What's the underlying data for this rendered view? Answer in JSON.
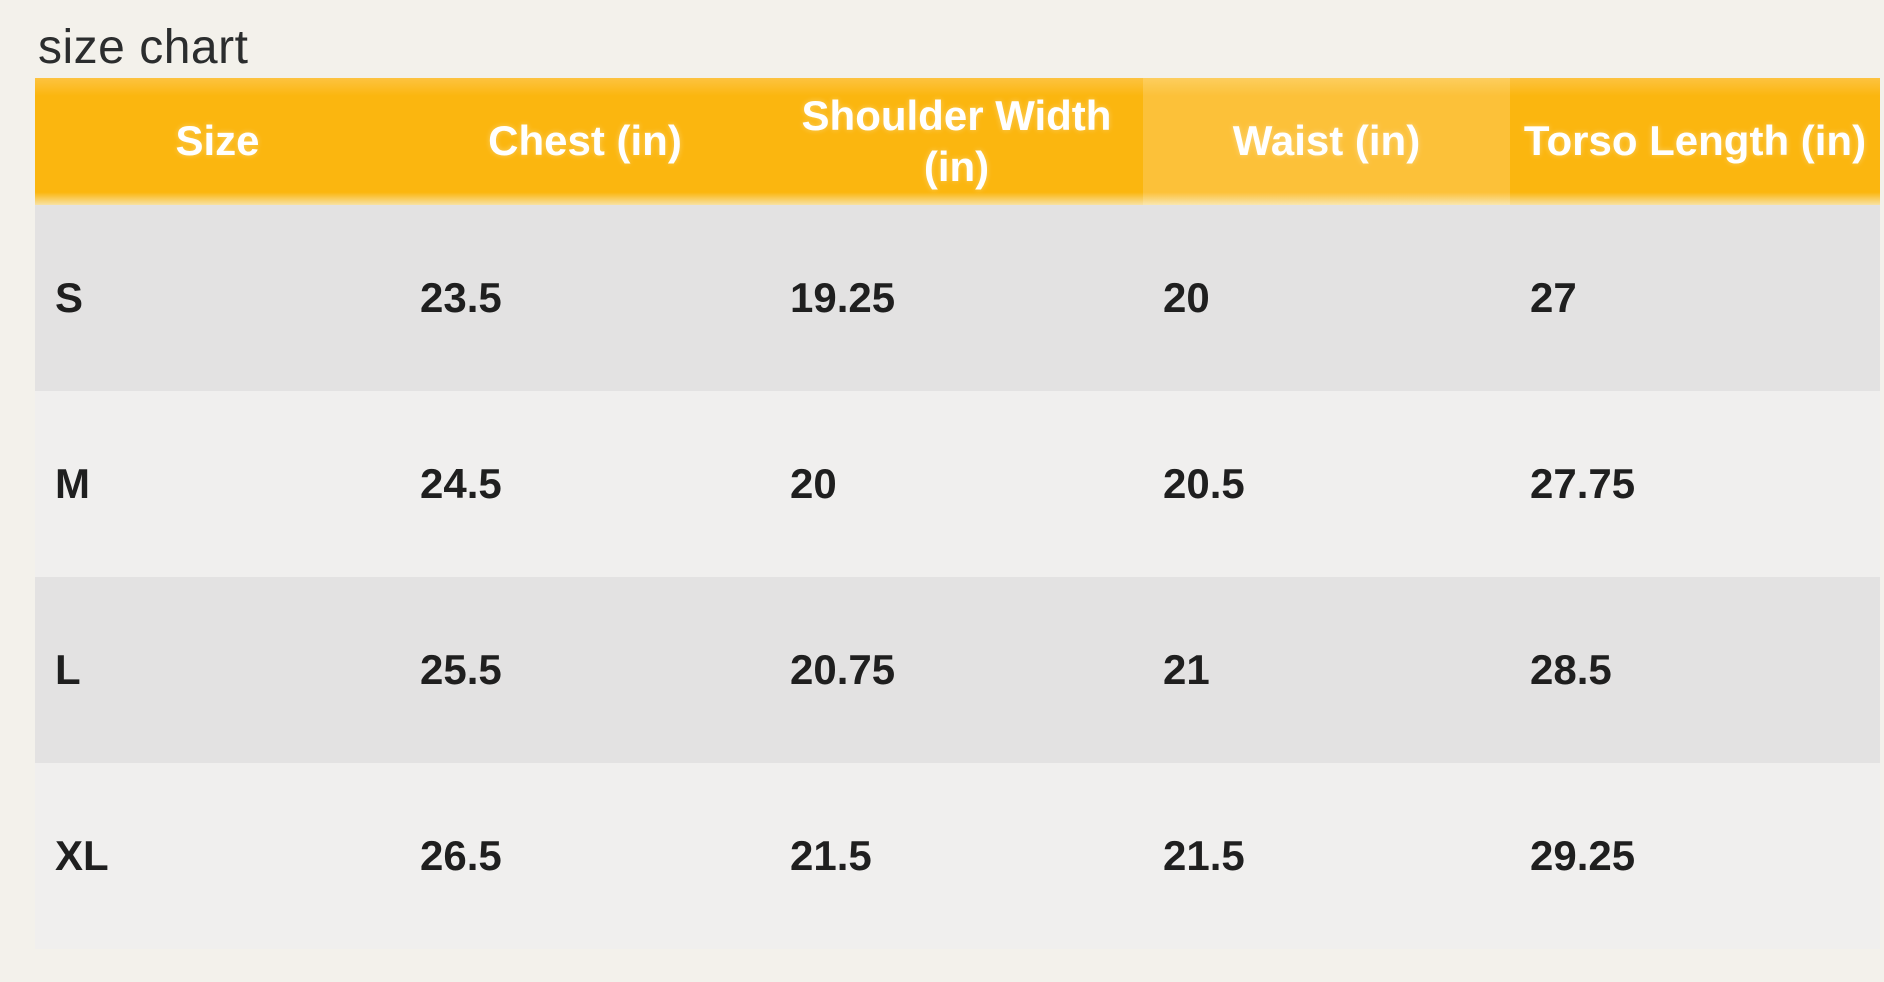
{
  "page": {
    "title": "size chart"
  },
  "colors": {
    "page_bg": "#f3f1eb",
    "header_bg": "#fbb60f",
    "header_bg_highlight": "#fcc139",
    "header_text": "#ffffff",
    "row_alt_dark": "#e3e2e2",
    "row_alt_light": "#f0efee",
    "title_text": "#2b2d2e",
    "cell_text": "#1f1f1f"
  },
  "chart_data": {
    "type": "table",
    "title": "size chart",
    "columns": [
      "Size",
      "Chest (in)",
      "Shoulder Width (in)",
      "Waist (in)",
      "Torso Length (in)"
    ],
    "highlighted_column": "Waist (in)",
    "rows": [
      {
        "size": "S",
        "chest_in": 23.5,
        "shoulder_width_in": 19.25,
        "waist_in": 20,
        "torso_length_in": 27
      },
      {
        "size": "M",
        "chest_in": 24.5,
        "shoulder_width_in": 20,
        "waist_in": 20.5,
        "torso_length_in": 27.75
      },
      {
        "size": "L",
        "chest_in": 25.5,
        "shoulder_width_in": 20.75,
        "waist_in": 21,
        "torso_length_in": 28.5
      },
      {
        "size": "XL",
        "chest_in": 26.5,
        "shoulder_width_in": 21.5,
        "waist_in": 21.5,
        "torso_length_in": 29.25
      }
    ]
  },
  "table": {
    "headers": [
      "Size",
      "Chest (in)",
      "Shoulder Width (in)",
      "Waist (in)",
      "Torso Length (in)"
    ],
    "rows": [
      {
        "cells": [
          "S",
          "23.5",
          "19.25",
          "20",
          "27"
        ]
      },
      {
        "cells": [
          "M",
          "24.5",
          "20",
          "20.5",
          "27.75"
        ]
      },
      {
        "cells": [
          "L",
          "25.5",
          "20.75",
          "21",
          "28.5"
        ]
      },
      {
        "cells": [
          "XL",
          "26.5",
          "21.5",
          "21.5",
          "29.25"
        ]
      }
    ]
  }
}
